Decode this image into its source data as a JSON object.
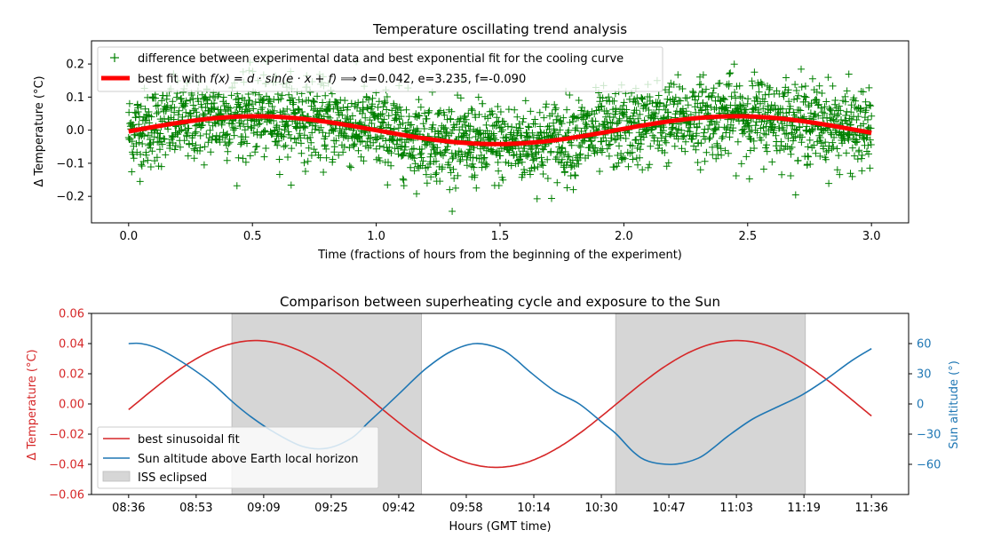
{
  "chart_data": [
    {
      "type": "scatter",
      "title": "Temperature oscillating trend analysis",
      "xlabel": "Time (fractions of hours from the beginning of the experiment)",
      "ylabel": "Δ Temperature (°C)",
      "xlim": [
        -0.15,
        3.15
      ],
      "ylim": [
        -0.28,
        0.27
      ],
      "xticks": [
        0.0,
        0.5,
        1.0,
        1.5,
        2.0,
        2.5,
        3.0
      ],
      "xtick_labels": [
        "0.0",
        "0.5",
        "1.0",
        "1.5",
        "2.0",
        "2.5",
        "3.0"
      ],
      "yticks": [
        -0.2,
        -0.1,
        0.0,
        0.1,
        0.2
      ],
      "ytick_labels": [
        "−0.2",
        "−0.1",
        "0.0",
        "0.1",
        "0.2"
      ],
      "legend_position": "top-left",
      "series": [
        {
          "name": "difference between experimental data and best exponential fit for the cooling curve",
          "kind": "scatter",
          "marker": "+",
          "color": "#008000",
          "x_range": [
            0.0,
            3.0
          ],
          "spread_sd": 0.06,
          "y_extremes": [
            -0.245,
            0.245
          ]
        },
        {
          "name": "best fit with f(x) = d · sin(e · x + f)  ⟹  d=0.042, e=3.235, f=-0.090",
          "name_prefix": "best fit with ",
          "name_formula": "f(x) = d · sin(e · x + f)",
          "name_arrow": "⟹",
          "name_params": "d=0.042, e=3.235, f=-0.090",
          "kind": "line",
          "color": "#ff0000",
          "function": "d*sin(e*x+f)",
          "params": {
            "d": 0.042,
            "e": 3.235,
            "f": -0.09
          },
          "x_range": [
            0.0,
            3.0
          ]
        }
      ]
    },
    {
      "type": "line",
      "title": "Comparison between superheating cycle and exposure to the Sun",
      "xlabel": "Hours (GMT time)",
      "ylabel_left": "Δ Temperature (°C)",
      "ylabel_right": "Sun altitude (°)",
      "xlim_hours": [
        -0.15,
        3.15
      ],
      "x_origin_time": "08:36",
      "ylim_left": [
        -0.06,
        0.06
      ],
      "ylim_right": [
        -90,
        90
      ],
      "xtick_labels": [
        "08:36",
        "08:53",
        "09:09",
        "09:25",
        "09:42",
        "09:58",
        "10:14",
        "10:30",
        "10:47",
        "11:03",
        "11:19",
        "11:36"
      ],
      "yticks_left": [
        "0.06",
        "0.04",
        "0.02",
        "0.00",
        "−0.02",
        "−0.04",
        "−0.06"
      ],
      "yticks_left_values": [
        0.06,
        0.04,
        0.02,
        0.0,
        -0.02,
        -0.04,
        -0.06
      ],
      "yticks_right": [
        "60",
        "30",
        "0",
        "−30",
        "−60"
      ],
      "yticks_right_values": [
        60,
        30,
        0,
        -30,
        -60
      ],
      "left_axis_color": "#d62728",
      "right_axis_color": "#1f77b4",
      "legend_position": "bottom-left",
      "series": [
        {
          "name": "best sinusoidal fit",
          "color": "#d62728",
          "axis": "left",
          "function": "d*sin(e*x+f)",
          "params": {
            "d": 0.042,
            "e": 3.235,
            "f": -0.09
          }
        },
        {
          "name": "Sun altitude above Earth local horizon",
          "color": "#1f77b4",
          "axis": "right",
          "x": [
            0.0,
            0.05,
            0.12,
            0.22,
            0.33,
            0.42,
            0.49,
            0.58,
            0.7,
            0.8,
            0.9,
            0.97,
            1.04,
            1.1,
            1.2,
            1.3,
            1.4,
            1.5,
            1.56,
            1.62,
            1.72,
            1.82,
            1.92,
            1.97,
            2.04,
            2.1,
            2.2,
            2.3,
            2.37,
            2.42,
            2.52,
            2.62,
            2.72,
            2.82,
            2.92,
            3.0
          ],
          "y": [
            60,
            60,
            55,
            41,
            22,
            2,
            -12,
            -27,
            -42,
            -44,
            -34,
            -18,
            -2,
            12,
            35,
            52,
            60,
            55,
            45,
            32,
            13,
            0,
            -20,
            -30,
            -48,
            -57,
            -60,
            -54,
            -42,
            -32,
            -15,
            -3,
            9,
            25,
            43,
            55
          ]
        },
        {
          "name": "ISS eclipsed",
          "color": "#d6d6d6",
          "kind": "shaded_regions",
          "regions": [
            [
              0.417,
              1.183
            ],
            [
              1.967,
              2.733
            ]
          ]
        }
      ]
    }
  ]
}
